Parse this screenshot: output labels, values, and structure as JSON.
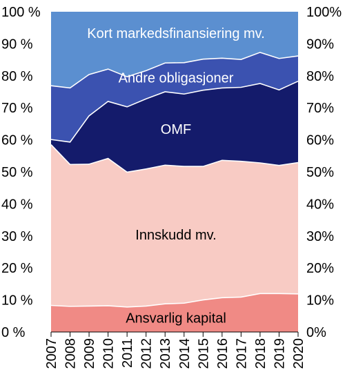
{
  "chart_data": {
    "type": "area",
    "stacked": true,
    "percent_scale": true,
    "x": [
      "2007",
      "2008",
      "2009",
      "2010",
      "2011",
      "2012",
      "2013",
      "2014",
      "2015",
      "2016",
      "2017",
      "2018",
      "2019",
      "2020"
    ],
    "ylim": [
      0,
      100
    ],
    "y_ticks_left": [
      "0 %",
      "10 %",
      "20 %",
      "30 %",
      "40 %",
      "50 %",
      "60 %",
      "70 %",
      "80 %",
      "90 %",
      "100 %"
    ],
    "y_ticks_right": [
      "0%",
      "10%",
      "20%",
      "30%",
      "40%",
      "50%",
      "60%",
      "70%",
      "80%",
      "90%",
      "100%"
    ],
    "series": [
      {
        "name": "Ansvarlig kapital",
        "color": "#f08a85",
        "label_color": "#000000",
        "values": [
          8.3,
          8.0,
          8.1,
          8.2,
          7.8,
          8.1,
          8.8,
          9.0,
          10.0,
          10.7,
          10.9,
          12.0,
          12.0,
          11.9
        ]
      },
      {
        "name": "Innskudd mv.",
        "color": "#f8cbc4",
        "label_color": "#000000",
        "values": [
          50.2,
          44.3,
          44.3,
          46.0,
          42.1,
          42.8,
          43.3,
          42.7,
          41.7,
          42.9,
          42.4,
          40.8,
          40.0,
          41.0
        ]
      },
      {
        "name": "OMF",
        "color": "#141b6b",
        "label_color": "#ffffff",
        "values": [
          1.6,
          7.0,
          15.1,
          17.8,
          20.4,
          21.9,
          22.9,
          22.6,
          23.8,
          22.6,
          23.1,
          24.8,
          23.6,
          25.4
        ]
      },
      {
        "name": "Andre obligasjoner",
        "color": "#3b52b0",
        "label_color": "#ffffff",
        "values": [
          16.8,
          16.9,
          12.9,
          10.1,
          9.4,
          8.8,
          9.0,
          9.8,
          9.7,
          9.3,
          8.7,
          9.7,
          9.8,
          7.9
        ]
      },
      {
        "name": "Kort markedsfinansiering mv.",
        "color": "#5b8fd0",
        "label_color": "#ffffff",
        "values": [
          23.1,
          23.8,
          19.6,
          17.9,
          20.3,
          18.4,
          16.0,
          15.9,
          14.8,
          14.5,
          14.9,
          12.7,
          14.6,
          13.8
        ]
      }
    ]
  }
}
